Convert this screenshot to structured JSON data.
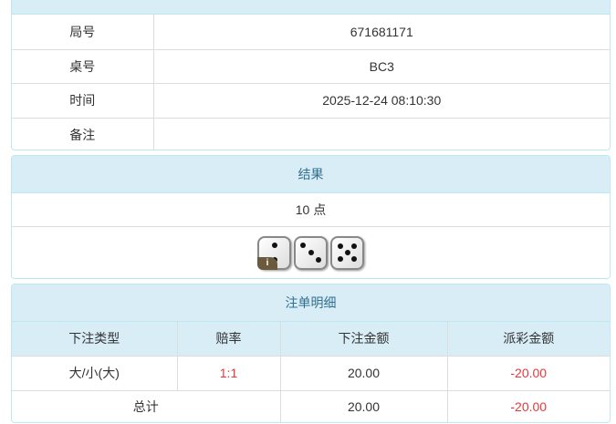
{
  "info": {
    "rows": [
      {
        "label": "局号",
        "value": "671681171"
      },
      {
        "label": "桌号",
        "value": "BC3"
      },
      {
        "label": "时间",
        "value": "2025-12-24 08:10:30"
      },
      {
        "label": "备注",
        "value": ""
      }
    ]
  },
  "result": {
    "title": "结果",
    "points": "10 点",
    "dice": [
      2,
      3,
      5
    ],
    "info_badge": "i"
  },
  "bets": {
    "title": "注单明细",
    "columns": [
      "下注类型",
      "赔率",
      "下注金额",
      "派彩金额"
    ],
    "rows": [
      {
        "type": "大/小(大)",
        "odds": "1:1",
        "amount": "20.00",
        "payout": "-20.00"
      }
    ],
    "total": {
      "label": "总计",
      "amount": "20.00",
      "payout": "-20.00"
    }
  },
  "colors": {
    "header_bg": "#d9edf7",
    "header_text": "#31708f",
    "negative": "#e4393c"
  }
}
